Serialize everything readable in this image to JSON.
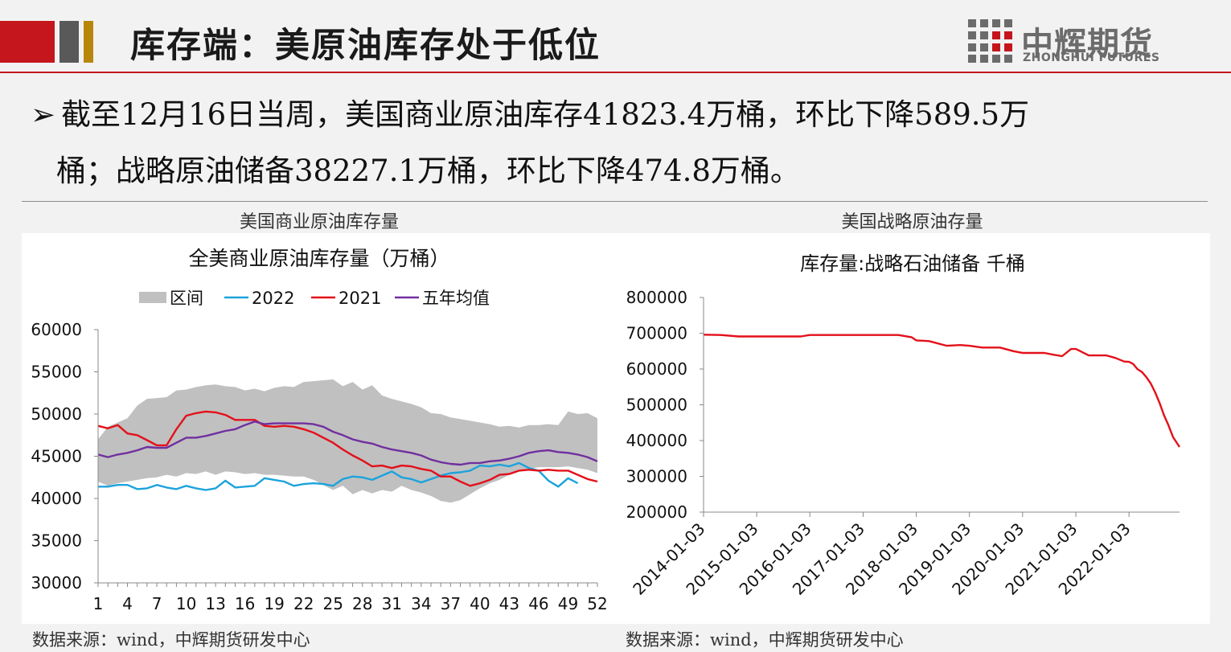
{
  "header": {
    "title": "库存端：美原油库存处于低位",
    "logo_cn": "中辉期货",
    "logo_en": "ZHONGHUI FUTURES",
    "colors": {
      "red": "#c4161c",
      "gray": "#595959",
      "gold": "#b8860b"
    }
  },
  "bullet": {
    "arrow": "➢",
    "line1": "截至12月16日当周，美国商业原油库存41823.4万桶，环比下降589.5万",
    "line2": "桶；战略原油储备38227.1万桶，环比下降474.8万桶。"
  },
  "left_panel": {
    "subtitle": "美国商业原油库存量",
    "source": "数据来源：wind，中辉期货研发中心"
  },
  "right_panel": {
    "subtitle": "美国战略原油存量",
    "source": "数据来源：wind，中辉期货研发中心"
  },
  "chart_data": [
    {
      "type": "line",
      "title": "全美商业原油库存量（万桶）",
      "legend_placement": "top",
      "x": [
        1,
        2,
        3,
        4,
        5,
        6,
        7,
        8,
        9,
        10,
        11,
        12,
        13,
        14,
        15,
        16,
        17,
        18,
        19,
        20,
        21,
        22,
        23,
        24,
        25,
        26,
        27,
        28,
        29,
        30,
        31,
        32,
        33,
        34,
        35,
        36,
        37,
        38,
        39,
        40,
        41,
        42,
        43,
        44,
        45,
        46,
        47,
        48,
        49,
        50,
        51,
        52
      ],
      "xticks": [
        "1",
        "4",
        "7",
        "10",
        "13",
        "16",
        "19",
        "22",
        "25",
        "28",
        "31",
        "34",
        "37",
        "40",
        "43",
        "46",
        "49",
        "52"
      ],
      "ylim": [
        30000,
        60000
      ],
      "yticks": [
        "60000",
        "55000",
        "50000",
        "45000",
        "40000",
        "35000",
        "30000"
      ],
      "grid": false,
      "band": {
        "name": "区间",
        "color": "#c0c0c0",
        "upper": [
          47000,
          48500,
          49000,
          49500,
          51000,
          51800,
          51900,
          52000,
          52800,
          52900,
          53200,
          53400,
          53500,
          53300,
          53200,
          52800,
          53000,
          52700,
          53100,
          53300,
          53200,
          53800,
          53900,
          54000,
          54100,
          53300,
          53800,
          52900,
          53400,
          52200,
          51800,
          51500,
          51200,
          50800,
          50100,
          50000,
          49600,
          49400,
          49200,
          49000,
          48800,
          48500,
          48600,
          48400,
          48700,
          48700,
          48800,
          48700,
          50300,
          50000,
          50100,
          49500
        ],
        "lower": [
          42000,
          41500,
          41800,
          42000,
          42200,
          42400,
          42500,
          42800,
          42600,
          43000,
          42900,
          43200,
          42800,
          43200,
          43100,
          42900,
          43000,
          42800,
          42800,
          42700,
          42600,
          42600,
          42200,
          41600,
          41000,
          41500,
          40500,
          41000,
          40600,
          41000,
          40800,
          41500,
          41000,
          40700,
          40300,
          39700,
          39500,
          39800,
          40500,
          41200,
          41800,
          42200,
          42800,
          43200,
          43500,
          43700,
          43700,
          43700,
          43800,
          43600,
          43400,
          43000
        ]
      },
      "series": [
        {
          "name": "2022",
          "color": "#1ca3dc",
          "values": [
            41400,
            41400,
            41600,
            41600,
            41100,
            41200,
            41600,
            41300,
            41100,
            41500,
            41200,
            41000,
            41200,
            42100,
            41300,
            41400,
            41500,
            42400,
            42200,
            42000,
            41500,
            41700,
            41800,
            41700,
            41500,
            42300,
            42600,
            42500,
            42200,
            42700,
            43200,
            42500,
            42300,
            41900,
            42300,
            42700,
            43000,
            43100,
            43300,
            43900,
            43800,
            44000,
            43800,
            44200,
            43600,
            43300,
            42100,
            41400,
            42400,
            41800,
            null,
            null
          ]
        },
        {
          "name": "2021",
          "color": "#e3101a",
          "values": [
            48600,
            48300,
            48700,
            47700,
            47500,
            46900,
            46300,
            46300,
            48200,
            49800,
            50100,
            50300,
            50200,
            49900,
            49300,
            49300,
            49300,
            48600,
            48500,
            48600,
            48500,
            48200,
            47800,
            47200,
            46600,
            45800,
            45100,
            44500,
            43800,
            43900,
            43600,
            43900,
            43800,
            43500,
            43300,
            42600,
            42600,
            42000,
            41500,
            41800,
            42200,
            42800,
            42900,
            43300,
            43400,
            43300,
            43400,
            43300,
            43300,
            42800,
            42300,
            42000
          ]
        },
        {
          "name": "五年均值",
          "color": "#7030a0",
          "values": [
            45200,
            44900,
            45200,
            45400,
            45700,
            46100,
            46000,
            46000,
            46600,
            47200,
            47200,
            47400,
            47700,
            48000,
            48200,
            48700,
            49100,
            48800,
            48900,
            48900,
            48900,
            48900,
            48800,
            48500,
            47900,
            47500,
            47000,
            46700,
            46500,
            46100,
            45800,
            45600,
            45400,
            45100,
            44600,
            44300,
            44100,
            44000,
            44200,
            44200,
            44400,
            44500,
            44700,
            45000,
            45400,
            45600,
            45700,
            45500,
            45400,
            45200,
            44900,
            44400
          ]
        }
      ]
    },
    {
      "type": "line",
      "title": "库存量:战略石油储备 千桶",
      "ylim": [
        200000,
        800000
      ],
      "yticks": [
        "800000",
        "700000",
        "600000",
        "500000",
        "400000",
        "300000",
        "200000"
      ],
      "xticks": [
        "2014-01-03",
        "2015-01-03",
        "2016-01-03",
        "2017-01-03",
        "2018-01-03",
        "2019-01-03",
        "2020-01-03",
        "2021-01-03",
        "2022-01-03"
      ],
      "x_range": [
        "2014-01-03",
        "2022-12-16"
      ],
      "grid": false,
      "series": [
        {
          "name": "",
          "color": "#e3101a",
          "x": [
            "2014-01-03",
            "2014-05-01",
            "2014-09-01",
            "2015-01-03",
            "2015-06-01",
            "2015-11-01",
            "2016-01-03",
            "2016-06-01",
            "2017-01-03",
            "2017-03-01",
            "2017-06-01",
            "2017-09-01",
            "2017-12-01",
            "2018-01-03",
            "2018-04-01",
            "2018-08-01",
            "2018-11-01",
            "2019-01-03",
            "2019-04-01",
            "2019-08-01",
            "2019-11-01",
            "2020-01-03",
            "2020-04-01",
            "2020-06-01",
            "2020-08-01",
            "2020-10-01",
            "2020-12-01",
            "2021-01-03",
            "2021-04-01",
            "2021-08-01",
            "2021-10-01",
            "2021-12-01",
            "2022-01-03",
            "2022-02-01",
            "2022-03-01",
            "2022-04-01",
            "2022-05-01",
            "2022-06-01",
            "2022-07-01",
            "2022-08-01",
            "2022-09-01",
            "2022-10-01",
            "2022-11-01",
            "2022-12-16"
          ],
          "values": [
            696000,
            695000,
            691000,
            691000,
            691000,
            691000,
            695000,
            695000,
            695000,
            695000,
            695000,
            695000,
            689000,
            680000,
            678000,
            665000,
            667000,
            665000,
            660000,
            660000,
            650000,
            645000,
            645000,
            645000,
            640000,
            636000,
            656000,
            656000,
            638000,
            638000,
            631000,
            621000,
            620000,
            614000,
            600000,
            592000,
            578000,
            560000,
            535000,
            505000,
            470000,
            443000,
            410000,
            382000
          ]
        }
      ]
    }
  ]
}
